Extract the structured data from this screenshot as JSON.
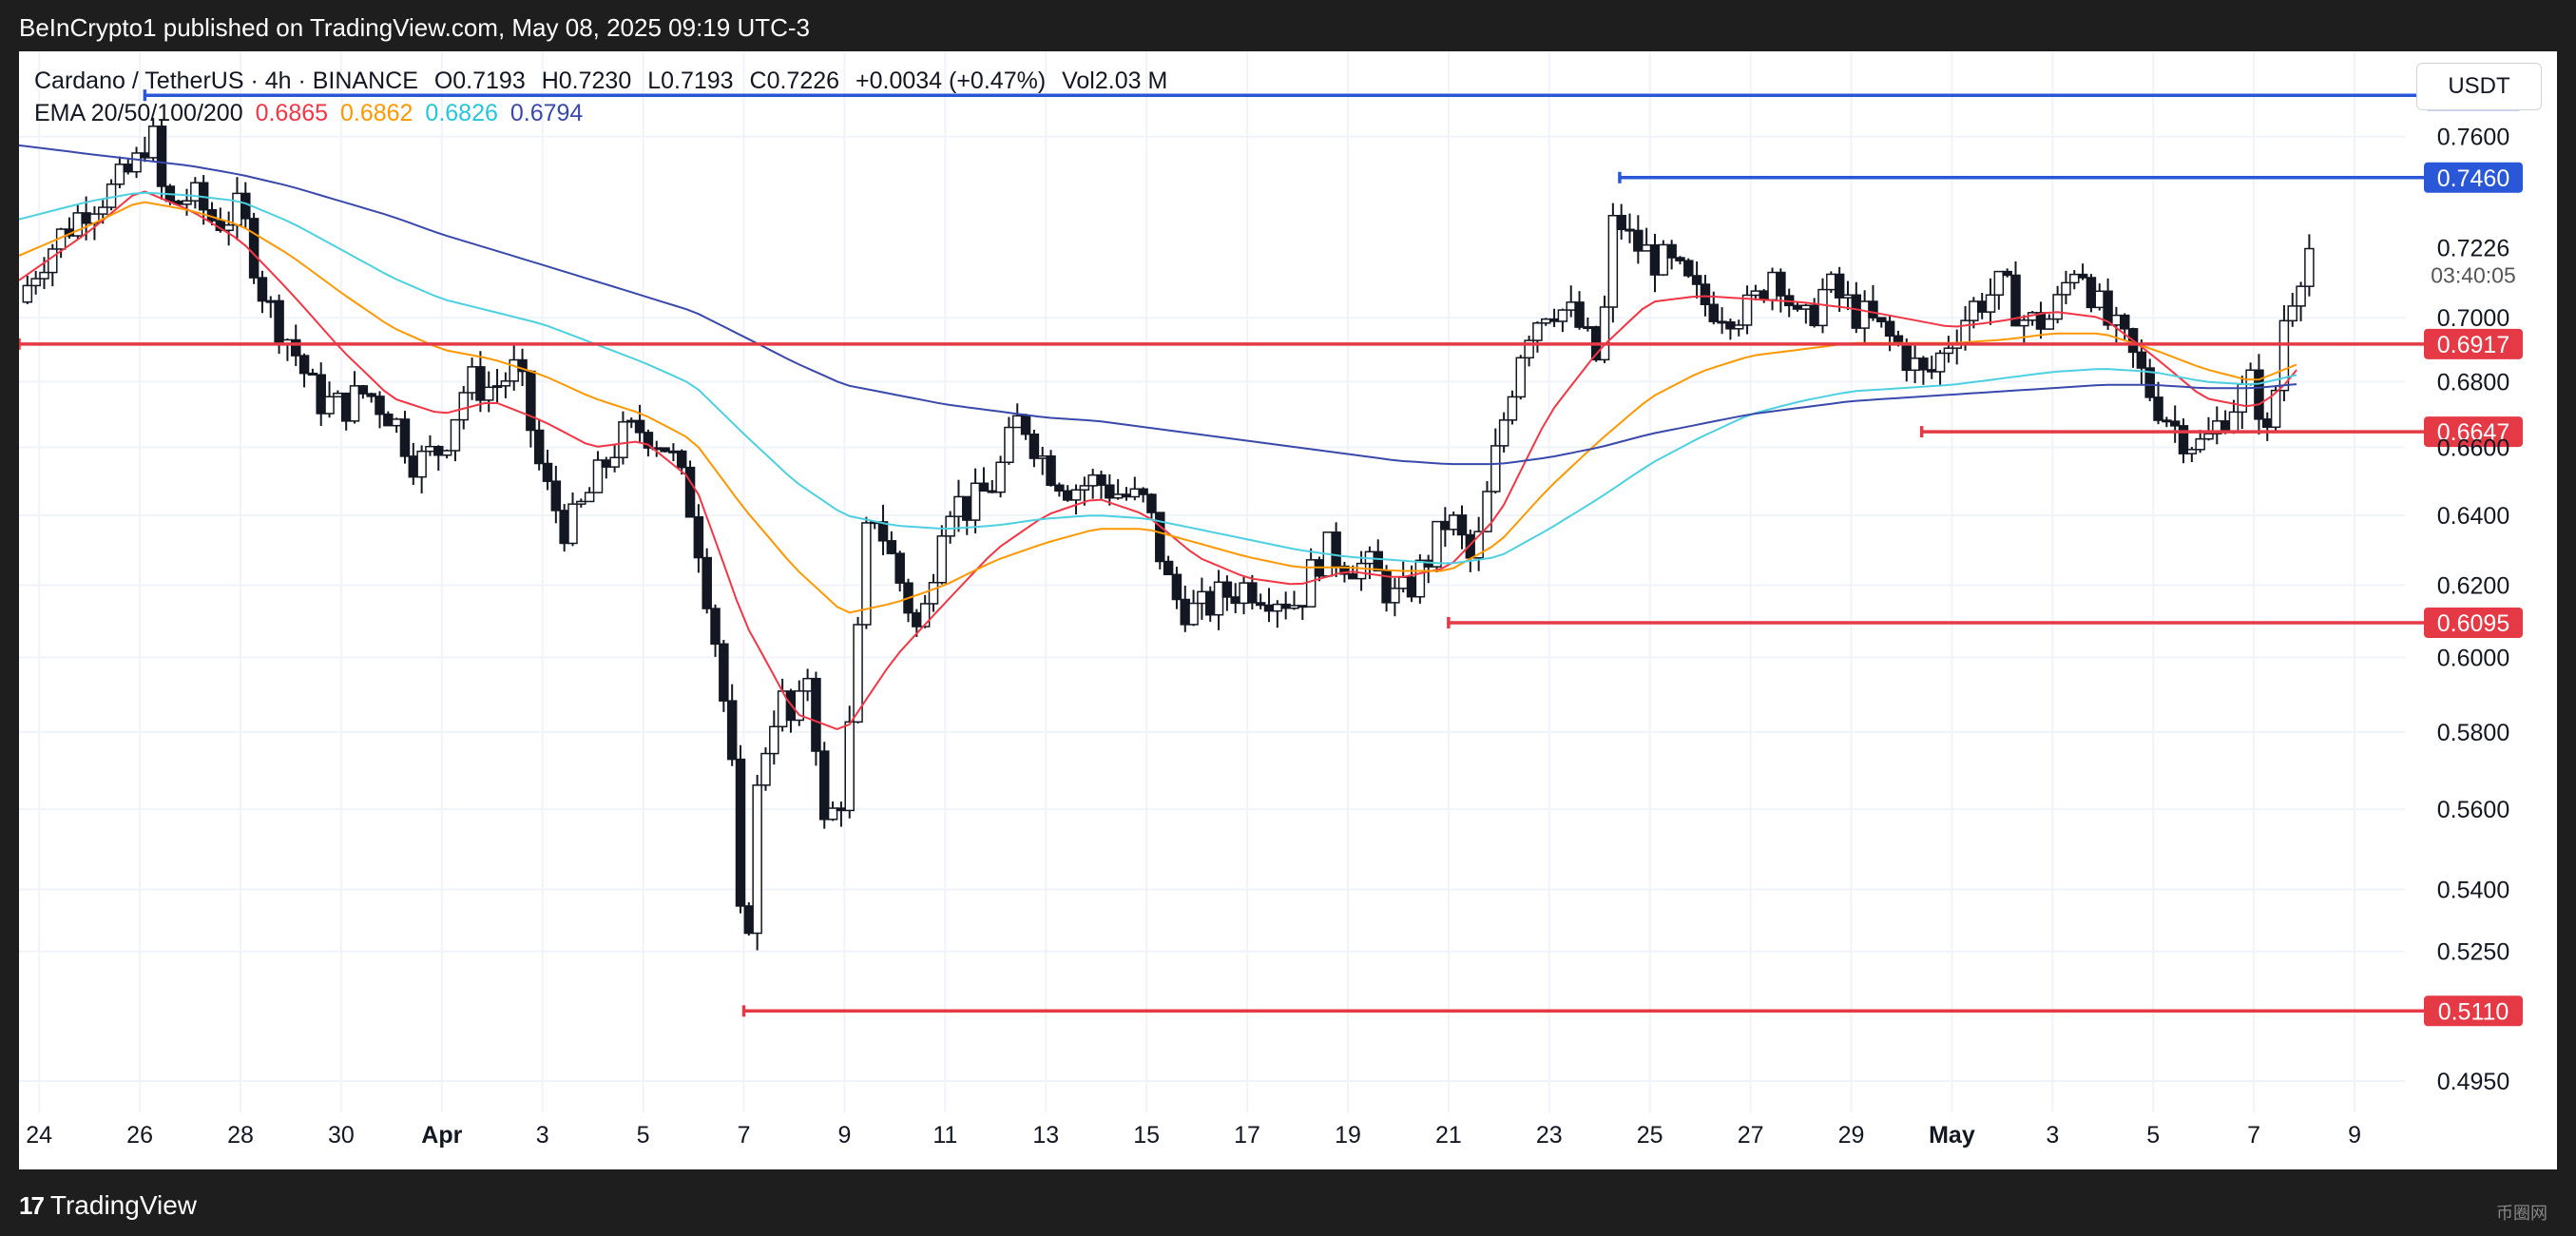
{
  "header": {
    "published": "BeInCrypto1 published on TradingView.com, May 08, 2025 09:19 UTC-3"
  },
  "legend": {
    "symbol": "Cardano / TetherUS · 4h · BINANCE",
    "open": "O0.7193",
    "high": "H0.7230",
    "low": "L0.7193",
    "close": "C0.7226",
    "change": "+0.0034 (+0.47%)",
    "volume": "Vol2.03 M",
    "ema_label": "EMA 20/50/100/200",
    "ema20": "0.6865",
    "ema50": "0.6862",
    "ema100": "0.6826",
    "ema200": "0.6794"
  },
  "currency_button": "USDT",
  "footer": {
    "brand": "TradingView",
    "watermark": "币圈网"
  },
  "colors": {
    "up": "#ffffff",
    "down": "#131722",
    "ema20": "#f23645",
    "ema50": "#ff9800",
    "ema100": "#4dd0e1",
    "ema200": "#3949ab",
    "support": "#e53945",
    "resistance": "#2957d8"
  },
  "chart_data": {
    "type": "candlestick",
    "title": "Cardano / TetherUS · 4h · BINANCE",
    "y_scale": "log",
    "ylim": [
      0.488,
      0.79
    ],
    "y_ticks": [
      "0.7600",
      "0.7000",
      "0.6800",
      "0.6600",
      "0.6400",
      "0.6200",
      "0.6000",
      "0.5800",
      "0.5600",
      "0.5400",
      "0.5250",
      "0.4950"
    ],
    "y_tick_values": [
      0.76,
      0.7,
      0.68,
      0.66,
      0.64,
      0.62,
      0.6,
      0.58,
      0.56,
      0.54,
      0.525,
      0.495
    ],
    "x_ticks": [
      {
        "label": "24",
        "day": 24.0
      },
      {
        "label": "26",
        "day": 26.0
      },
      {
        "label": "28",
        "day": 28.0
      },
      {
        "label": "30",
        "day": 30.0
      },
      {
        "label": "Apr",
        "day": 32.0,
        "bold": true
      },
      {
        "label": "3",
        "day": 34.0
      },
      {
        "label": "5",
        "day": 36.0
      },
      {
        "label": "7",
        "day": 38.0
      },
      {
        "label": "9",
        "day": 40.0
      },
      {
        "label": "11",
        "day": 42.0
      },
      {
        "label": "13",
        "day": 44.0
      },
      {
        "label": "15",
        "day": 46.0
      },
      {
        "label": "17",
        "day": 48.0
      },
      {
        "label": "19",
        "day": 50.0
      },
      {
        "label": "21",
        "day": 52.0
      },
      {
        "label": "23",
        "day": 54.0
      },
      {
        "label": "25",
        "day": 56.0
      },
      {
        "label": "27",
        "day": 58.0
      },
      {
        "label": "29",
        "day": 60.0
      },
      {
        "label": "May",
        "day": 62.0,
        "bold": true
      },
      {
        "label": "3",
        "day": 64.0
      },
      {
        "label": "5",
        "day": 66.0
      },
      {
        "label": "7",
        "day": 68.0
      },
      {
        "label": "9",
        "day": 70.0
      }
    ],
    "price_labels": [
      {
        "value": 0.7744,
        "text": "0.7744",
        "kind": "resistance",
        "from_day": 26.1
      },
      {
        "value": 0.746,
        "text": "0.7460",
        "kind": "resistance",
        "from_day": 55.4
      },
      {
        "value": 0.6917,
        "text": "0.6917",
        "kind": "support",
        "from_day": 23.6
      },
      {
        "value": 0.6647,
        "text": "0.6647",
        "kind": "support",
        "from_day": 61.4
      },
      {
        "value": 0.6095,
        "text": "0.6095",
        "kind": "support",
        "from_day": 52.0
      },
      {
        "value": 0.511,
        "text": "0.5110",
        "kind": "support",
        "from_day": 38.0
      }
    ],
    "last_price": {
      "value": 0.7226,
      "text": "0.7226",
      "countdown": "03:40:05"
    },
    "close_anchors": [
      [
        23.6,
        0.705
      ],
      [
        24.0,
        0.718
      ],
      [
        24.5,
        0.728
      ],
      [
        25.0,
        0.738
      ],
      [
        25.5,
        0.742
      ],
      [
        26.0,
        0.752
      ],
      [
        26.2,
        0.765
      ],
      [
        26.5,
        0.735
      ],
      [
        27.0,
        0.74
      ],
      [
        27.5,
        0.731
      ],
      [
        28.0,
        0.735
      ],
      [
        28.5,
        0.705
      ],
      [
        29.0,
        0.692
      ],
      [
        29.5,
        0.675
      ],
      [
        30.0,
        0.672
      ],
      [
        30.5,
        0.677
      ],
      [
        31.0,
        0.67
      ],
      [
        31.5,
        0.655
      ],
      [
        32.0,
        0.66
      ],
      [
        32.5,
        0.68
      ],
      [
        33.0,
        0.678
      ],
      [
        33.5,
        0.684
      ],
      [
        34.0,
        0.65
      ],
      [
        34.5,
        0.635
      ],
      [
        35.0,
        0.648
      ],
      [
        35.5,
        0.662
      ],
      [
        36.0,
        0.666
      ],
      [
        36.5,
        0.66
      ],
      [
        37.0,
        0.64
      ],
      [
        37.5,
        0.6
      ],
      [
        37.8,
        0.565
      ],
      [
        38.0,
        0.515
      ],
      [
        38.3,
        0.57
      ],
      [
        38.7,
        0.59
      ],
      [
        39.0,
        0.58
      ],
      [
        39.3,
        0.598
      ],
      [
        39.6,
        0.555
      ],
      [
        40.0,
        0.565
      ],
      [
        40.3,
        0.61
      ],
      [
        40.5,
        0.645
      ],
      [
        41.0,
        0.625
      ],
      [
        41.5,
        0.605
      ],
      [
        42.0,
        0.645
      ],
      [
        42.5,
        0.642
      ],
      [
        43.0,
        0.65
      ],
      [
        43.5,
        0.67
      ],
      [
        44.0,
        0.655
      ],
      [
        44.5,
        0.648
      ],
      [
        45.0,
        0.65
      ],
      [
        45.5,
        0.646
      ],
      [
        46.0,
        0.643
      ],
      [
        46.5,
        0.617
      ],
      [
        47.0,
        0.612
      ],
      [
        47.5,
        0.617
      ],
      [
        48.0,
        0.62
      ],
      [
        48.5,
        0.618
      ],
      [
        49.0,
        0.615
      ],
      [
        49.5,
        0.63
      ],
      [
        50.0,
        0.627
      ],
      [
        50.5,
        0.624
      ],
      [
        51.0,
        0.615
      ],
      [
        51.5,
        0.625
      ],
      [
        52.0,
        0.64
      ],
      [
        52.5,
        0.625
      ],
      [
        53.0,
        0.662
      ],
      [
        53.5,
        0.695
      ],
      [
        54.0,
        0.705
      ],
      [
        54.5,
        0.7
      ],
      [
        55.0,
        0.685
      ],
      [
        55.3,
        0.735
      ],
      [
        55.6,
        0.725
      ],
      [
        56.0,
        0.72
      ],
      [
        56.5,
        0.715
      ],
      [
        57.0,
        0.705
      ],
      [
        57.5,
        0.703
      ],
      [
        58.0,
        0.702
      ],
      [
        58.5,
        0.718
      ],
      [
        59.0,
        0.695
      ],
      [
        59.5,
        0.71
      ],
      [
        60.0,
        0.703
      ],
      [
        60.5,
        0.697
      ],
      [
        61.0,
        0.69
      ],
      [
        61.5,
        0.68
      ],
      [
        62.0,
        0.695
      ],
      [
        62.5,
        0.705
      ],
      [
        63.0,
        0.71
      ],
      [
        63.5,
        0.698
      ],
      [
        64.0,
        0.7
      ],
      [
        64.5,
        0.72
      ],
      [
        65.0,
        0.7
      ],
      [
        65.5,
        0.69
      ],
      [
        66.0,
        0.675
      ],
      [
        66.5,
        0.665
      ],
      [
        67.0,
        0.66
      ],
      [
        67.5,
        0.672
      ],
      [
        68.0,
        0.68
      ],
      [
        68.3,
        0.66
      ],
      [
        68.6,
        0.7
      ],
      [
        68.9,
        0.715
      ],
      [
        69.1,
        0.7226
      ]
    ],
    "ema_anchors": {
      "ema20": [
        [
          23.6,
          0.712
        ],
        [
          25.0,
          0.728
        ],
        [
          26.0,
          0.742
        ],
        [
          27.0,
          0.735
        ],
        [
          28.0,
          0.725
        ],
        [
          29.0,
          0.708
        ],
        [
          30.0,
          0.69
        ],
        [
          31.0,
          0.675
        ],
        [
          32.0,
          0.67
        ],
        [
          33.0,
          0.674
        ],
        [
          34.0,
          0.668
        ],
        [
          35.0,
          0.66
        ],
        [
          36.0,
          0.662
        ],
        [
          37.0,
          0.65
        ],
        [
          38.0,
          0.61
        ],
        [
          39.0,
          0.585
        ],
        [
          40.0,
          0.58
        ],
        [
          41.0,
          0.6
        ],
        [
          42.0,
          0.615
        ],
        [
          43.0,
          0.63
        ],
        [
          44.0,
          0.64
        ],
        [
          45.0,
          0.645
        ],
        [
          46.0,
          0.64
        ],
        [
          47.0,
          0.628
        ],
        [
          48.0,
          0.622
        ],
        [
          49.0,
          0.62
        ],
        [
          50.0,
          0.624
        ],
        [
          51.0,
          0.622
        ],
        [
          52.0,
          0.625
        ],
        [
          53.0,
          0.64
        ],
        [
          54.0,
          0.67
        ],
        [
          55.0,
          0.69
        ],
        [
          56.0,
          0.705
        ],
        [
          57.0,
          0.707
        ],
        [
          58.0,
          0.706
        ],
        [
          59.0,
          0.705
        ],
        [
          60.0,
          0.703
        ],
        [
          61.0,
          0.7
        ],
        [
          62.0,
          0.697
        ],
        [
          63.0,
          0.699
        ],
        [
          64.0,
          0.702
        ],
        [
          65.0,
          0.7
        ],
        [
          66.0,
          0.688
        ],
        [
          67.0,
          0.675
        ],
        [
          68.0,
          0.672
        ],
        [
          68.5,
          0.677
        ],
        [
          69.0,
          0.6865
        ]
      ],
      "ema50": [
        [
          23.6,
          0.72
        ],
        [
          25.0,
          0.73
        ],
        [
          26.0,
          0.738
        ],
        [
          27.0,
          0.735
        ],
        [
          28.0,
          0.73
        ],
        [
          29.0,
          0.72
        ],
        [
          30.0,
          0.708
        ],
        [
          31.0,
          0.697
        ],
        [
          32.0,
          0.69
        ],
        [
          33.0,
          0.687
        ],
        [
          34.0,
          0.682
        ],
        [
          35.0,
          0.675
        ],
        [
          36.0,
          0.67
        ],
        [
          37.0,
          0.662
        ],
        [
          38.0,
          0.642
        ],
        [
          39.0,
          0.625
        ],
        [
          40.0,
          0.612
        ],
        [
          41.0,
          0.615
        ],
        [
          42.0,
          0.62
        ],
        [
          43.0,
          0.627
        ],
        [
          44.0,
          0.632
        ],
        [
          45.0,
          0.636
        ],
        [
          46.0,
          0.636
        ],
        [
          47.0,
          0.632
        ],
        [
          48.0,
          0.628
        ],
        [
          49.0,
          0.625
        ],
        [
          50.0,
          0.625
        ],
        [
          51.0,
          0.624
        ],
        [
          52.0,
          0.624
        ],
        [
          53.0,
          0.632
        ],
        [
          54.0,
          0.648
        ],
        [
          55.0,
          0.662
        ],
        [
          56.0,
          0.675
        ],
        [
          57.0,
          0.683
        ],
        [
          58.0,
          0.688
        ],
        [
          59.0,
          0.69
        ],
        [
          60.0,
          0.692
        ],
        [
          61.0,
          0.692
        ],
        [
          62.0,
          0.692
        ],
        [
          63.0,
          0.693
        ],
        [
          64.0,
          0.695
        ],
        [
          65.0,
          0.695
        ],
        [
          66.0,
          0.69
        ],
        [
          67.0,
          0.684
        ],
        [
          68.0,
          0.68
        ],
        [
          69.0,
          0.6862
        ]
      ],
      "ema100": [
        [
          23.6,
          0.732
        ],
        [
          25.0,
          0.738
        ],
        [
          26.0,
          0.741
        ],
        [
          27.0,
          0.74
        ],
        [
          28.0,
          0.738
        ],
        [
          29.0,
          0.731
        ],
        [
          30.0,
          0.722
        ],
        [
          31.0,
          0.713
        ],
        [
          32.0,
          0.706
        ],
        [
          33.0,
          0.702
        ],
        [
          34.0,
          0.698
        ],
        [
          35.0,
          0.692
        ],
        [
          36.0,
          0.686
        ],
        [
          37.0,
          0.679
        ],
        [
          38.0,
          0.664
        ],
        [
          39.0,
          0.65
        ],
        [
          40.0,
          0.64
        ],
        [
          41.0,
          0.637
        ],
        [
          42.0,
          0.636
        ],
        [
          43.0,
          0.637
        ],
        [
          44.0,
          0.639
        ],
        [
          45.0,
          0.64
        ],
        [
          46.0,
          0.639
        ],
        [
          47.0,
          0.636
        ],
        [
          48.0,
          0.633
        ],
        [
          49.0,
          0.63
        ],
        [
          50.0,
          0.628
        ],
        [
          51.0,
          0.627
        ],
        [
          52.0,
          0.626
        ],
        [
          53.0,
          0.628
        ],
        [
          54.0,
          0.636
        ],
        [
          55.0,
          0.645
        ],
        [
          56.0,
          0.655
        ],
        [
          57.0,
          0.663
        ],
        [
          58.0,
          0.67
        ],
        [
          59.0,
          0.674
        ],
        [
          60.0,
          0.677
        ],
        [
          61.0,
          0.678
        ],
        [
          62.0,
          0.679
        ],
        [
          63.0,
          0.681
        ],
        [
          64.0,
          0.683
        ],
        [
          65.0,
          0.684
        ],
        [
          66.0,
          0.683
        ],
        [
          67.0,
          0.68
        ],
        [
          68.0,
          0.679
        ],
        [
          69.0,
          0.6826
        ]
      ],
      "ema200": [
        [
          23.6,
          0.757
        ],
        [
          25.0,
          0.754
        ],
        [
          26.0,
          0.752
        ],
        [
          27.0,
          0.75
        ],
        [
          28.0,
          0.747
        ],
        [
          29.0,
          0.743
        ],
        [
          30.0,
          0.738
        ],
        [
          31.0,
          0.733
        ],
        [
          32.0,
          0.727
        ],
        [
          33.0,
          0.722
        ],
        [
          34.0,
          0.717
        ],
        [
          35.0,
          0.712
        ],
        [
          36.0,
          0.707
        ],
        [
          37.0,
          0.702
        ],
        [
          38.0,
          0.694
        ],
        [
          39.0,
          0.686
        ],
        [
          40.0,
          0.679
        ],
        [
          41.0,
          0.676
        ],
        [
          42.0,
          0.673
        ],
        [
          43.0,
          0.671
        ],
        [
          44.0,
          0.669
        ],
        [
          45.0,
          0.668
        ],
        [
          46.0,
          0.666
        ],
        [
          47.0,
          0.664
        ],
        [
          48.0,
          0.662
        ],
        [
          49.0,
          0.66
        ],
        [
          50.0,
          0.658
        ],
        [
          51.0,
          0.656
        ],
        [
          52.0,
          0.655
        ],
        [
          53.0,
          0.655
        ],
        [
          54.0,
          0.657
        ],
        [
          55.0,
          0.66
        ],
        [
          56.0,
          0.664
        ],
        [
          57.0,
          0.667
        ],
        [
          58.0,
          0.67
        ],
        [
          59.0,
          0.672
        ],
        [
          60.0,
          0.674
        ],
        [
          61.0,
          0.675
        ],
        [
          62.0,
          0.676
        ],
        [
          63.0,
          0.677
        ],
        [
          64.0,
          0.678
        ],
        [
          65.0,
          0.679
        ],
        [
          66.0,
          0.679
        ],
        [
          67.0,
          0.678
        ],
        [
          68.0,
          0.678
        ],
        [
          69.0,
          0.6794
        ]
      ]
    },
    "x_domain_days": [
      23.6,
      71.0
    ],
    "grid": true
  }
}
